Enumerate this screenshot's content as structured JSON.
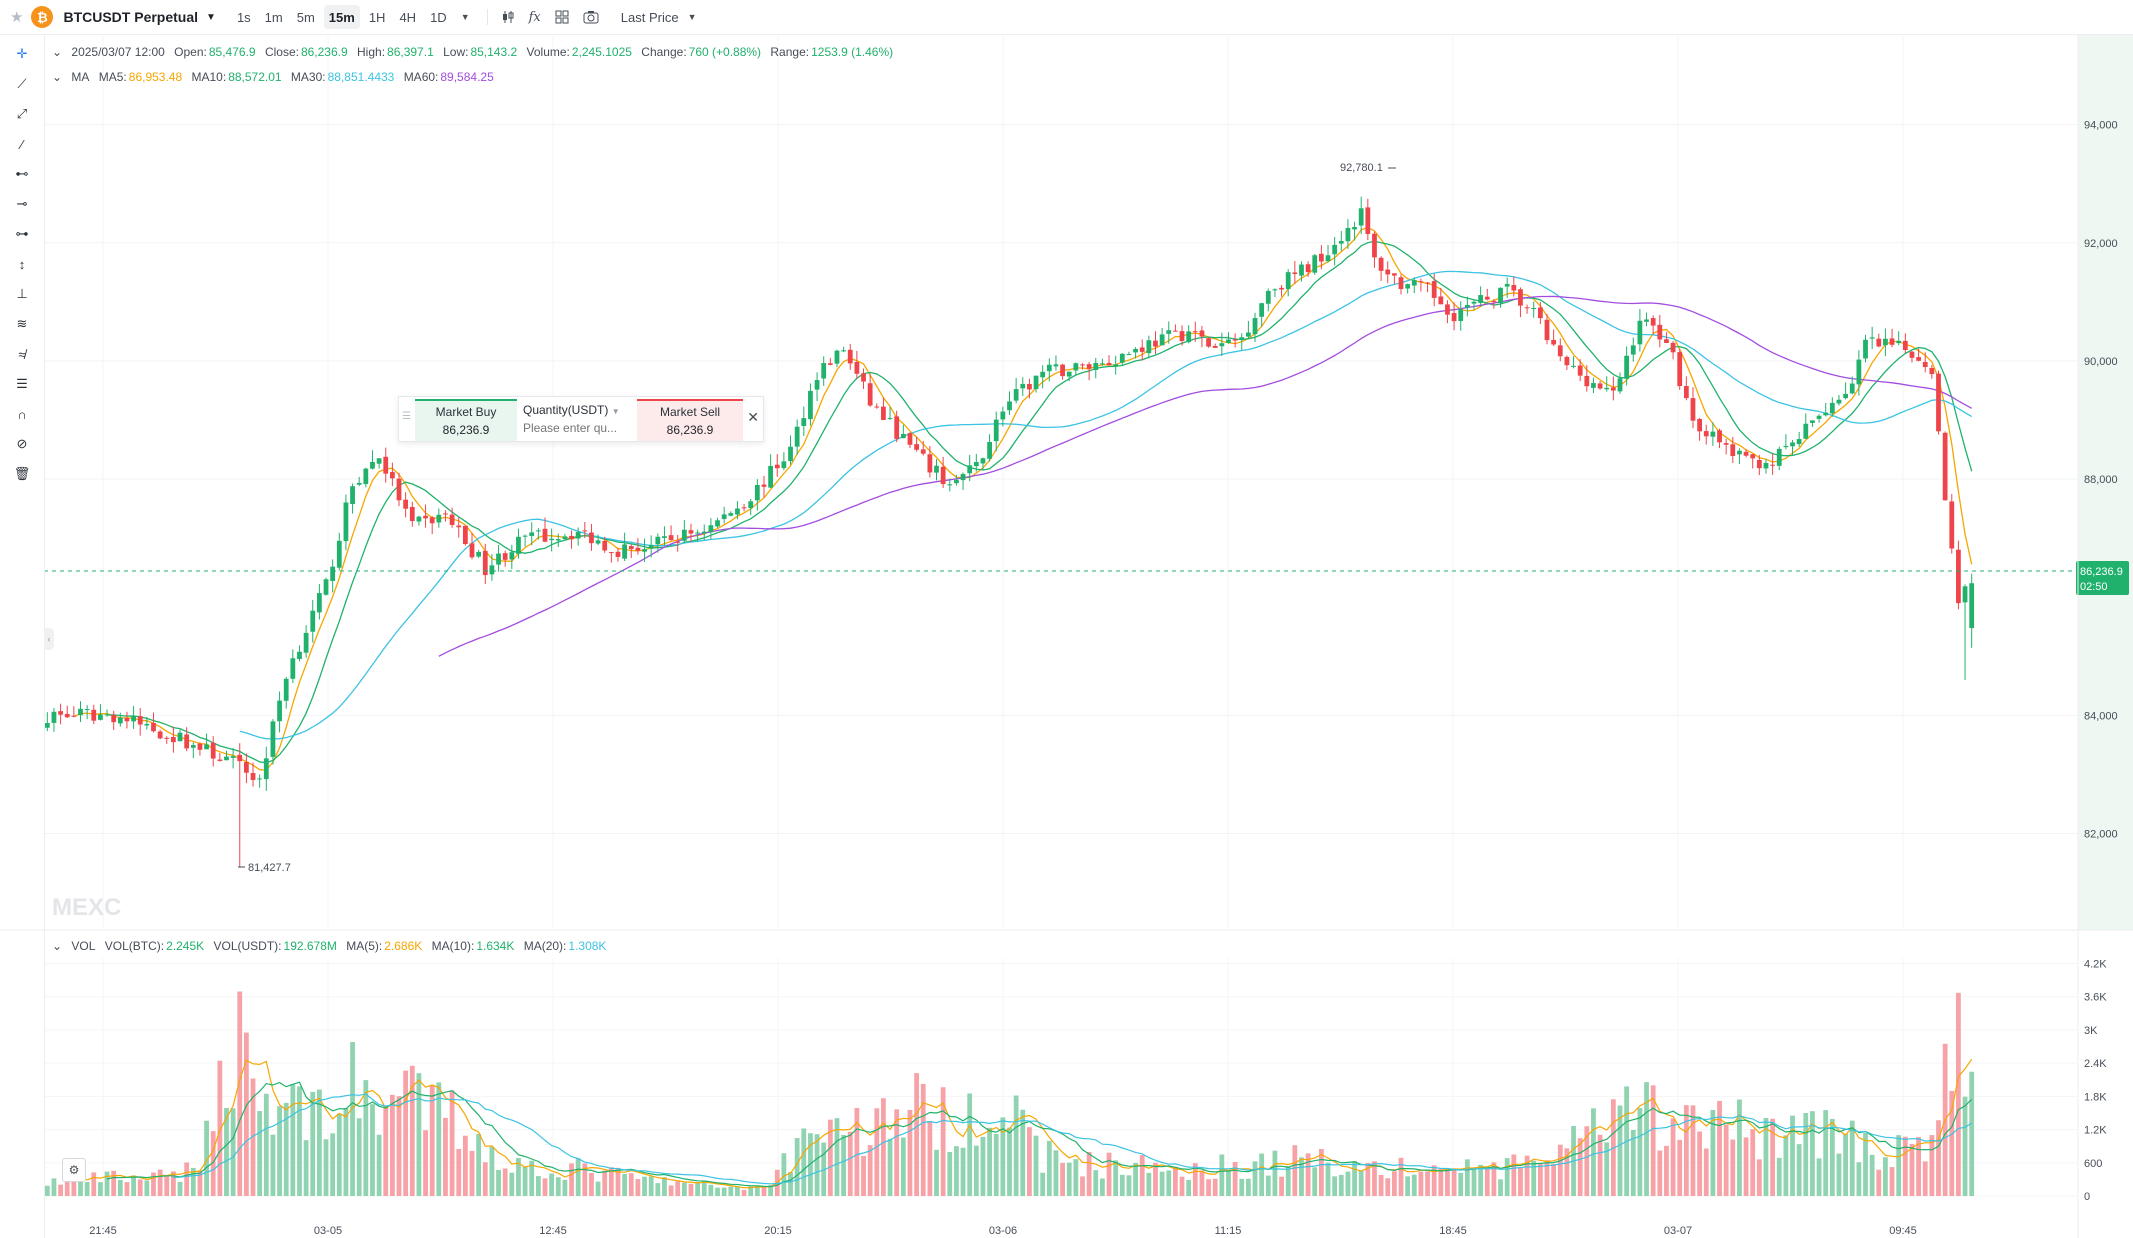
{
  "toolbar": {
    "symbol": "BTCUSDT Perpetual",
    "intervals": [
      "1s",
      "1m",
      "5m",
      "15m",
      "1H",
      "4H",
      "1D"
    ],
    "active_interval": "15m",
    "price_type": "Last Price"
  },
  "legend": {
    "date": "2025/03/07 12:00",
    "open_label": "Open:",
    "open": "85,476.9",
    "close_label": "Close:",
    "close": "86,236.9",
    "high_label": "High:",
    "high": "86,397.1",
    "low_label": "Low:",
    "low": "85,143.2",
    "volume_label": "Volume:",
    "volume": "2,245.1025",
    "change_label": "Change:",
    "change": "760 (+0.88%)",
    "range_label": "Range:",
    "range": "1253.9 (1.46%)"
  },
  "ma_legend": {
    "title": "MA",
    "ma5_label": "MA5:",
    "ma5": "86,953.48",
    "ma10_label": "MA10:",
    "ma10": "88,572.01",
    "ma30_label": "MA30:",
    "ma30": "88,851.4433",
    "ma60_label": "MA60:",
    "ma60": "89,584.25"
  },
  "vol_legend": {
    "title": "VOL",
    "btc_label": "VOL(BTC):",
    "btc": "2.245K",
    "usdt_label": "VOL(USDT):",
    "usdt": "192.678M",
    "ma5_label": "MA(5):",
    "ma5": "2.686K",
    "ma10_label": "MA(10):",
    "ma10": "1.634K",
    "ma20_label": "MA(20):",
    "ma20": "1.308K"
  },
  "trade": {
    "buy_label": "Market Buy",
    "buy_price": "86,236.9",
    "qty_label": "Quantity(USDT)",
    "qty_placeholder": "Please enter qu...",
    "sell_label": "Market Sell",
    "sell_price": "86,236.9"
  },
  "watermark": "MEXC",
  "colors": {
    "up": "#20b26c",
    "down": "#ef454a",
    "ma5": "#f7a600",
    "ma10": "#20b26c",
    "ma30": "#3cc3e3",
    "ma60": "#a24de0"
  },
  "chart_data": {
    "type": "candlestick",
    "timeframe": "15m",
    "price_axis_ticks": [
      "94,000",
      "92,000",
      "90,000",
      "88,000",
      "84,000",
      "82,000"
    ],
    "volume_axis_ticks": [
      "4.2K",
      "3.6K",
      "3K",
      "2.4K",
      "1.8K",
      "1.2K",
      "600",
      "0"
    ],
    "time_axis_labels": [
      "21:45",
      "03-05",
      "12:45",
      "20:15",
      "03-06",
      "11:15",
      "18:45",
      "03-07",
      "09:45"
    ],
    "ylim": [
      80400,
      95500
    ],
    "vol_ylim": [
      0,
      4300
    ],
    "last_price": "86,236.9",
    "countdown": "02:50",
    "annotations": {
      "high_label": "92,780.1",
      "low_label": "81,427.7"
    },
    "close_waypoints": [
      [
        0,
        84000
      ],
      [
        10,
        84000
      ],
      [
        20,
        83600
      ],
      [
        28,
        83200
      ],
      [
        32,
        82900
      ],
      [
        36,
        84700
      ],
      [
        42,
        86200
      ],
      [
        46,
        87900
      ],
      [
        50,
        88400
      ],
      [
        55,
        87200
      ],
      [
        60,
        87400
      ],
      [
        66,
        86500
      ],
      [
        72,
        87000
      ],
      [
        80,
        87100
      ],
      [
        86,
        86800
      ],
      [
        92,
        86900
      ],
      [
        100,
        87200
      ],
      [
        106,
        87700
      ],
      [
        112,
        88500
      ],
      [
        116,
        89800
      ],
      [
        120,
        90200
      ],
      [
        124,
        89300
      ],
      [
        128,
        88800
      ],
      [
        132,
        88300
      ],
      [
        136,
        87900
      ],
      [
        140,
        88200
      ],
      [
        144,
        89200
      ],
      [
        150,
        89800
      ],
      [
        156,
        89900
      ],
      [
        160,
        90000
      ],
      [
        166,
        90300
      ],
      [
        172,
        90500
      ],
      [
        176,
        90200
      ],
      [
        180,
        90400
      ],
      [
        184,
        91200
      ],
      [
        190,
        91600
      ],
      [
        194,
        92000
      ],
      [
        198,
        92500
      ],
      [
        200,
        91700
      ],
      [
        204,
        91300
      ],
      [
        208,
        91200
      ],
      [
        212,
        90800
      ],
      [
        216,
        91000
      ],
      [
        220,
        91200
      ],
      [
        224,
        90800
      ],
      [
        228,
        90000
      ],
      [
        232,
        89700
      ],
      [
        236,
        89400
      ],
      [
        240,
        90700
      ],
      [
        244,
        90400
      ],
      [
        248,
        89000
      ],
      [
        252,
        88600
      ],
      [
        256,
        88300
      ],
      [
        260,
        88300
      ],
      [
        264,
        88700
      ],
      [
        268,
        89200
      ],
      [
        272,
        89600
      ],
      [
        274,
        90300
      ],
      [
        280,
        90200
      ],
      [
        284,
        89900
      ],
      [
        286,
        87600
      ],
      [
        288,
        86000
      ],
      [
        290,
        86240
      ]
    ],
    "volume_waypoints": [
      [
        0,
        250
      ],
      [
        10,
        330
      ],
      [
        20,
        330
      ],
      [
        24,
        1000
      ],
      [
        27,
        2450
      ],
      [
        30,
        3250
      ],
      [
        32,
        1650
      ],
      [
        38,
        1650
      ],
      [
        44,
        1550
      ],
      [
        46,
        1950
      ],
      [
        50,
        1750
      ],
      [
        56,
        1650
      ],
      [
        60,
        1500
      ],
      [
        64,
        1100
      ],
      [
        70,
        550
      ],
      [
        80,
        480
      ],
      [
        90,
        300
      ],
      [
        100,
        180
      ],
      [
        108,
        160
      ],
      [
        112,
        750
      ],
      [
        116,
        1350
      ],
      [
        120,
        1250
      ],
      [
        124,
        1200
      ],
      [
        130,
        1700
      ],
      [
        134,
        1300
      ],
      [
        140,
        1650
      ],
      [
        144,
        1550
      ],
      [
        150,
        750
      ],
      [
        156,
        600
      ],
      [
        160,
        560
      ],
      [
        170,
        500
      ],
      [
        180,
        550
      ],
      [
        186,
        600
      ],
      [
        190,
        700
      ],
      [
        196,
        560
      ],
      [
        204,
        480
      ],
      [
        212,
        480
      ],
      [
        216,
        550
      ],
      [
        220,
        480
      ],
      [
        228,
        800
      ],
      [
        232,
        1050
      ],
      [
        236,
        1300
      ],
      [
        242,
        1550
      ],
      [
        246,
        1150
      ],
      [
        250,
        1350
      ],
      [
        254,
        1250
      ],
      [
        258,
        1200
      ],
      [
        262,
        1150
      ],
      [
        266,
        1250
      ],
      [
        270,
        1050
      ],
      [
        276,
        850
      ],
      [
        280,
        750
      ],
      [
        284,
        950
      ],
      [
        286,
        2600
      ],
      [
        288,
        2650
      ],
      [
        290,
        2245
      ]
    ]
  }
}
